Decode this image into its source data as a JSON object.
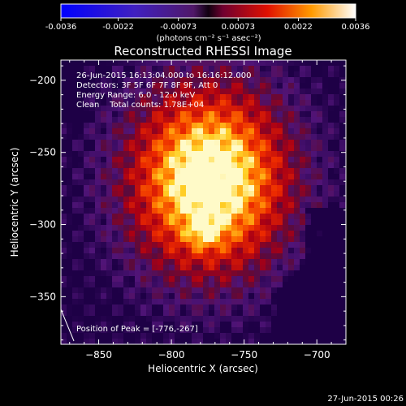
{
  "colorbar": {
    "ticks": [
      "-0.0036",
      "-0.0022",
      "-0.00073",
      "0.00073",
      "0.0022",
      "0.0036"
    ],
    "unit_label": "(photons cm⁻² s⁻¹ asec⁻²)",
    "min": -0.0036,
    "max": 0.0036
  },
  "chart_data": {
    "type": "heatmap",
    "title": "Reconstructed RHESSI Image",
    "xlabel": "Heliocentric X (arcsec)",
    "ylabel": "Heliocentric Y (arcsec)",
    "xlim": [
      -876,
      -680
    ],
    "ylim": [
      -383,
      -186
    ],
    "x_ticks": [
      -850,
      -800,
      -750,
      -700
    ],
    "y_ticks": [
      -200,
      -250,
      -300,
      -350
    ],
    "peak_x": -776,
    "peak_y": -267,
    "annotations": [
      "26-Jun-2015 16:13:04.000 to 16:16:12.000",
      "Detectors: 3F 5F 6F 7F 8F 9F, Att 0",
      "Energy Range: 6.0 - 12.0 keV",
      "Clean    Total counts: 1.78E+04",
      "Position of Peak = [-776,-267]"
    ],
    "colormap": "red-temperature (blue-purple-red-orange-yellow-white)"
  },
  "footer": {
    "timestamp": "27-Jun-2015 00:26"
  }
}
